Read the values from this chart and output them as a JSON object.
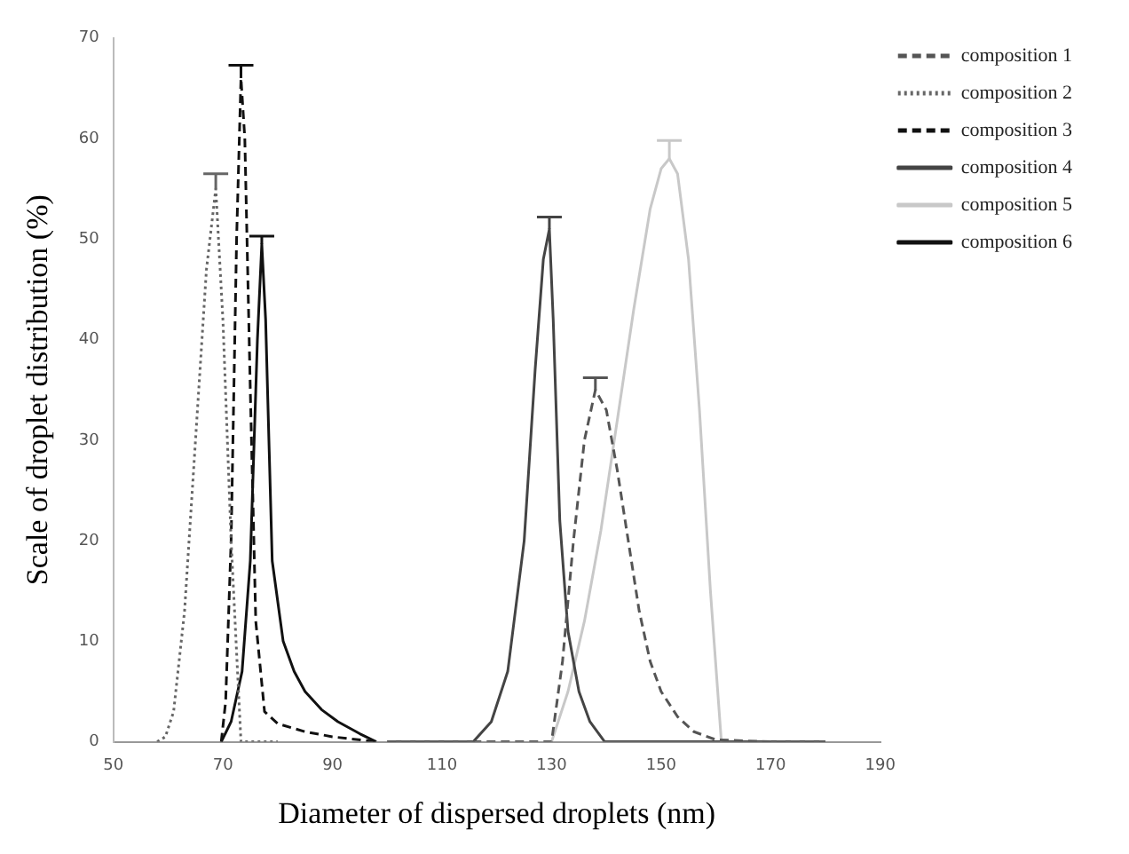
{
  "chart_data": {
    "type": "line",
    "xlabel": "Diameter of dispersed droplets (nm)",
    "ylabel": "Scale of droplet distribution (%)",
    "xlim": [
      50,
      190
    ],
    "xticks": [
      50,
      70,
      90,
      110,
      130,
      150,
      170,
      190
    ],
    "ylim": [
      0,
      70
    ],
    "yticks": [
      0,
      10,
      20,
      30,
      40,
      50,
      60,
      70
    ],
    "grid": false,
    "legend": "top right",
    "series": [
      {
        "name": "composition 1",
        "color": "#555555",
        "line_style": "dashed",
        "x": [
          100,
          130,
          132,
          134,
          136,
          138,
          140,
          142,
          144,
          146,
          148,
          150,
          153,
          156,
          160,
          170,
          180
        ],
        "values": [
          0,
          0,
          8,
          20,
          30,
          35,
          33,
          27,
          20,
          13,
          8,
          5,
          2.5,
          1,
          0.2,
          0,
          0
        ],
        "errors": [
          null,
          null,
          null,
          null,
          null,
          [
            35,
            36.2
          ],
          null,
          null,
          null,
          null,
          null,
          null,
          null,
          null,
          null,
          null,
          null
        ]
      },
      {
        "name": "composition 2",
        "color": "#666666",
        "line_style": "dotted",
        "x": [
          58,
          59.5,
          61,
          63,
          65,
          67,
          68.7,
          70,
          71.5,
          73.3,
          80
        ],
        "values": [
          0,
          0.5,
          3,
          13,
          30,
          47,
          55,
          42,
          20,
          0,
          0
        ],
        "errors": [
          null,
          null,
          null,
          null,
          null,
          null,
          [
            55,
            56.5
          ],
          null,
          null,
          null,
          null
        ]
      },
      {
        "name": "composition 3",
        "color": "#111111",
        "line_style": "dashed",
        "x": [
          69.7,
          70.5,
          71.5,
          72.5,
          73.3,
          74,
          75,
          76,
          77.6,
          80,
          85,
          90,
          98
        ],
        "values": [
          0,
          4,
          20,
          50,
          66,
          60,
          35,
          12,
          3,
          1.8,
          1,
          0.5,
          0
        ],
        "errors": [
          null,
          null,
          null,
          null,
          [
            66,
            67.3
          ],
          null,
          null,
          null,
          null,
          null,
          null,
          null,
          null
        ]
      },
      {
        "name": "composition 4",
        "color": "#444444",
        "line_style": "solid",
        "x": [
          100,
          115.7,
          119,
          122,
          125,
          127,
          128.5,
          129.6,
          130.3,
          131.5,
          133,
          135,
          137,
          139.7,
          180
        ],
        "values": [
          0,
          0,
          2,
          7,
          20,
          37,
          48,
          51,
          42,
          22,
          11,
          5,
          2,
          0,
          0
        ],
        "errors": [
          null,
          null,
          null,
          null,
          null,
          null,
          null,
          [
            51,
            52.2
          ],
          null,
          null,
          null,
          null,
          null,
          null,
          null
        ]
      },
      {
        "name": "composition 5",
        "color": "#c8c8c8",
        "line_style": "solid",
        "x": [
          130,
          133,
          136,
          139,
          142,
          145,
          148,
          150,
          151.5,
          153,
          155,
          157,
          159,
          161
        ],
        "values": [
          0,
          5,
          12,
          21,
          32,
          43,
          53,
          57,
          58,
          56.5,
          48,
          33,
          15,
          0
        ],
        "errors": [
          null,
          null,
          null,
          null,
          null,
          null,
          null,
          null,
          [
            58,
            59.8
          ],
          null,
          null,
          null,
          null,
          null
        ]
      },
      {
        "name": "composition 6",
        "color": "#111111",
        "line_style": "solid",
        "x": [
          69.7,
          71.5,
          73.5,
          75,
          76.3,
          77.1,
          77.8,
          79,
          81,
          83,
          85,
          88,
          91,
          95,
          98
        ],
        "values": [
          0,
          2,
          7,
          18,
          40,
          49.5,
          42,
          18,
          10,
          7,
          5,
          3.2,
          2,
          0.8,
          0
        ],
        "errors": [
          null,
          null,
          null,
          null,
          null,
          [
            49.5,
            50.3
          ],
          null,
          null,
          null,
          null,
          null,
          null,
          null,
          null,
          null
        ]
      }
    ]
  }
}
